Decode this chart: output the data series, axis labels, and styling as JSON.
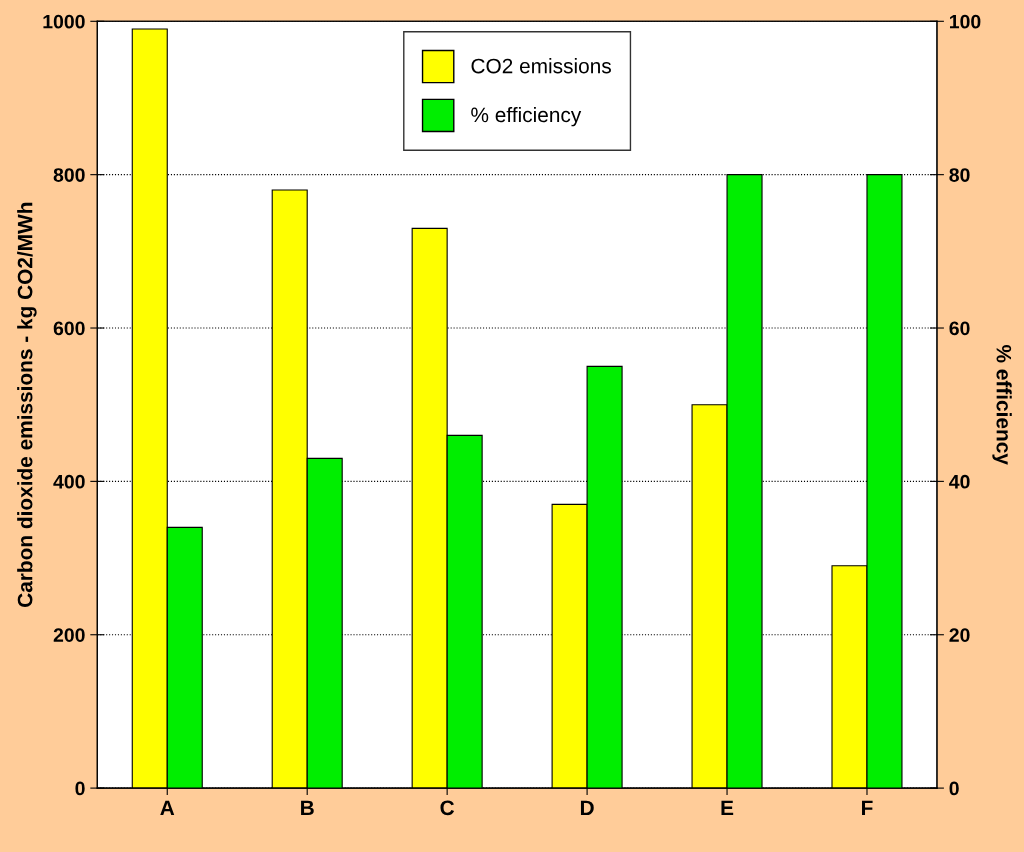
{
  "chart_data": {
    "type": "bar",
    "categories": [
      "A",
      "B",
      "C",
      "D",
      "E",
      "F"
    ],
    "series": [
      {
        "name": "CO2 emissions",
        "color": "#ffff00",
        "values": [
          990,
          780,
          730,
          370,
          500,
          290
        ]
      },
      {
        "name": "% efficiency",
        "color": "#00ee00",
        "values": [
          34,
          43,
          46,
          55,
          80,
          80
        ],
        "axis": "y2"
      }
    ],
    "ylabel": "Carbon dioxide emissions - kg CO2/MWh",
    "y2label": "% efficiency",
    "ylim": [
      0,
      1000
    ],
    "yticks": [
      0,
      200,
      400,
      600,
      800,
      1000
    ],
    "y2lim": [
      0,
      100
    ],
    "y2ticks": [
      0,
      20,
      40,
      60,
      80,
      100
    ],
    "grid": "y",
    "legend": "top"
  }
}
